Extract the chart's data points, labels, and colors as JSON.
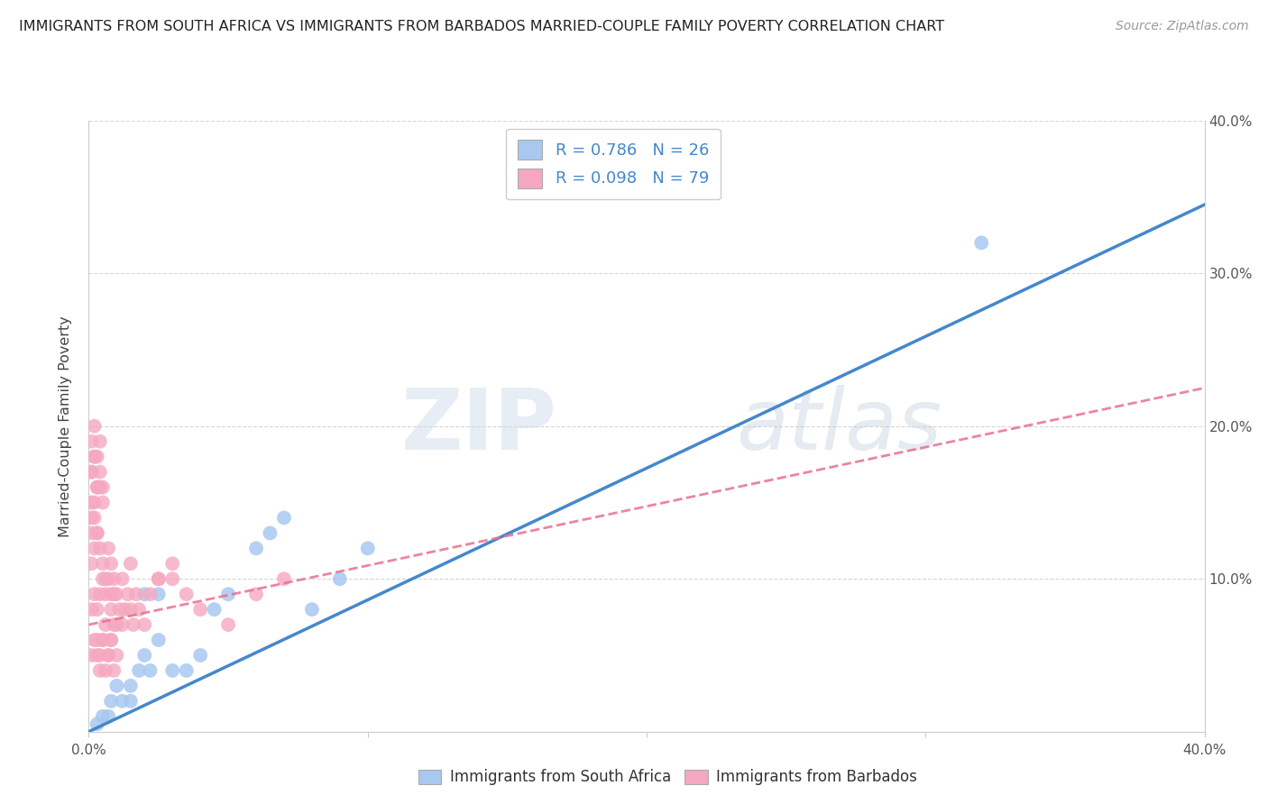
{
  "title": "IMMIGRANTS FROM SOUTH AFRICA VS IMMIGRANTS FROM BARBADOS MARRIED-COUPLE FAMILY POVERTY CORRELATION CHART",
  "source": "Source: ZipAtlas.com",
  "ylabel": "Married-Couple Family Poverty",
  "xaxis_label_sa": "Immigrants from South Africa",
  "xaxis_label_bb": "Immigrants from Barbados",
  "xlim": [
    0.0,
    0.4
  ],
  "ylim": [
    0.0,
    0.4
  ],
  "xtick_vals": [
    0.0,
    0.1,
    0.2,
    0.3,
    0.4
  ],
  "ytick_vals": [
    0.0,
    0.1,
    0.2,
    0.3,
    0.4
  ],
  "sa_R": 0.786,
  "sa_N": 26,
  "bb_R": 0.098,
  "bb_N": 79,
  "sa_color": "#a8c8f0",
  "bb_color": "#f5a8c0",
  "sa_line_color": "#4488cc",
  "bb_line_color": "#e87090",
  "watermark_zip": "ZIP",
  "watermark_atlas": "atlas",
  "background_color": "#ffffff",
  "grid_color": "#cccccc",
  "sa_line_x0": 0.0,
  "sa_line_y0": 0.0,
  "sa_line_x1": 0.4,
  "sa_line_y1": 0.345,
  "bb_line_x0": 0.0,
  "bb_line_y0": 0.07,
  "bb_line_x1": 0.4,
  "bb_line_y1": 0.225,
  "sa_scatter_x": [
    0.005,
    0.008,
    0.01,
    0.012,
    0.015,
    0.018,
    0.02,
    0.022,
    0.025,
    0.03,
    0.035,
    0.04,
    0.045,
    0.05,
    0.06,
    0.065,
    0.07,
    0.08,
    0.09,
    0.1,
    0.003,
    0.007,
    0.015,
    0.02,
    0.025,
    0.32
  ],
  "sa_scatter_y": [
    0.01,
    0.02,
    0.03,
    0.02,
    0.03,
    0.04,
    0.05,
    0.04,
    0.06,
    0.04,
    0.04,
    0.05,
    0.08,
    0.09,
    0.12,
    0.13,
    0.14,
    0.08,
    0.1,
    0.12,
    0.005,
    0.01,
    0.02,
    0.09,
    0.09,
    0.32
  ],
  "bb_scatter_x": [
    0.001,
    0.002,
    0.003,
    0.004,
    0.005,
    0.006,
    0.007,
    0.008,
    0.009,
    0.01,
    0.001,
    0.002,
    0.003,
    0.004,
    0.005,
    0.006,
    0.007,
    0.008,
    0.009,
    0.01,
    0.001,
    0.002,
    0.003,
    0.004,
    0.005,
    0.006,
    0.007,
    0.008,
    0.009,
    0.01,
    0.001,
    0.002,
    0.003,
    0.004,
    0.005,
    0.001,
    0.002,
    0.003,
    0.004,
    0.005,
    0.001,
    0.002,
    0.003,
    0.004,
    0.001,
    0.002,
    0.003,
    0.001,
    0.002,
    0.001,
    0.011,
    0.012,
    0.013,
    0.014,
    0.015,
    0.016,
    0.017,
    0.018,
    0.02,
    0.022,
    0.025,
    0.03,
    0.035,
    0.04,
    0.05,
    0.06,
    0.07,
    0.015,
    0.012,
    0.008,
    0.003,
    0.004,
    0.005,
    0.006,
    0.007,
    0.008,
    0.009,
    0.025,
    0.03
  ],
  "bb_scatter_y": [
    0.05,
    0.06,
    0.05,
    0.04,
    0.06,
    0.07,
    0.05,
    0.06,
    0.07,
    0.05,
    0.08,
    0.09,
    0.08,
    0.09,
    0.1,
    0.09,
    0.1,
    0.08,
    0.09,
    0.07,
    0.11,
    0.12,
    0.13,
    0.12,
    0.11,
    0.1,
    0.12,
    0.11,
    0.1,
    0.09,
    0.15,
    0.14,
    0.13,
    0.16,
    0.15,
    0.17,
    0.18,
    0.16,
    0.17,
    0.16,
    0.19,
    0.2,
    0.18,
    0.19,
    0.17,
    0.18,
    0.16,
    0.14,
    0.15,
    0.13,
    0.08,
    0.07,
    0.08,
    0.09,
    0.08,
    0.07,
    0.09,
    0.08,
    0.07,
    0.09,
    0.1,
    0.1,
    0.09,
    0.08,
    0.07,
    0.09,
    0.1,
    0.11,
    0.1,
    0.09,
    0.06,
    0.05,
    0.06,
    0.04,
    0.05,
    0.06,
    0.04,
    0.1,
    0.11
  ]
}
